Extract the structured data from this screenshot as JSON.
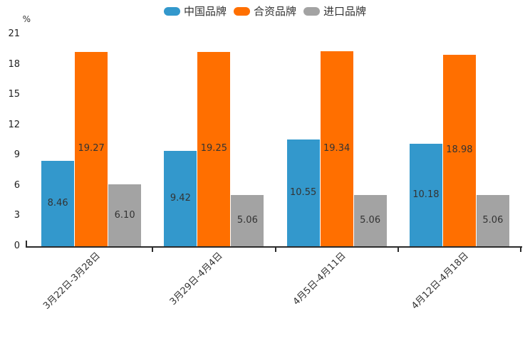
{
  "chart_data": {
    "type": "bar",
    "legend_position": "top",
    "grid": false,
    "categories": [
      "3月22日-3月28日",
      "3月29日-4月4日",
      "4月5日-4月11日",
      "4月12日-4月18日"
    ],
    "series": [
      {
        "name": "中国品牌",
        "color": "#3398cc",
        "values": [
          8.46,
          9.42,
          10.55,
          10.18
        ]
      },
      {
        "name": "合资品牌",
        "color": "#ff6f00",
        "values": [
          19.27,
          19.25,
          19.34,
          18.98
        ]
      },
      {
        "name": "进口品牌",
        "color": "#a3a3a3",
        "values": [
          6.1,
          5.06,
          5.06,
          5.06
        ]
      }
    ],
    "y_axis": {
      "unit": "%",
      "min": 0,
      "max": 21,
      "ticks": [
        0,
        3,
        6,
        9,
        12,
        15,
        18,
        21
      ]
    },
    "value_label_decimals": 2,
    "colors": {
      "axis": "#2b2b2b",
      "label_text": "#333333"
    }
  }
}
